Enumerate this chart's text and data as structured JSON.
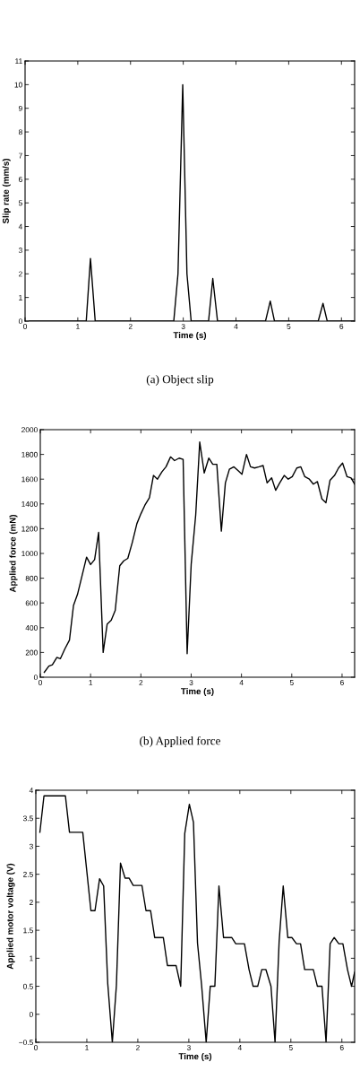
{
  "chart_data": [
    {
      "type": "line",
      "xlabel": "Time (s)",
      "ylabel": "Slip rate (mm/s)",
      "annotations": [
        "(a) Object slip"
      ],
      "xlim": [
        0,
        6.25
      ],
      "ylim": [
        0,
        11
      ],
      "xticks": [
        0,
        1,
        2,
        3,
        4,
        5,
        6
      ],
      "yticks": [
        0,
        1,
        2,
        3,
        4,
        5,
        6,
        7,
        8,
        9,
        10,
        11
      ],
      "grid": false,
      "legend": false,
      "series": [
        {
          "color": "#000000",
          "x": [
            0.08,
            1.16,
            1.24,
            1.33,
            2.82,
            2.9,
            2.99,
            3.07,
            3.15,
            3.48,
            3.56,
            3.65,
            4.56,
            4.65,
            4.73,
            5.56,
            5.65,
            5.73,
            6.25
          ],
          "values": [
            0,
            0,
            2.65,
            0,
            0,
            2.0,
            10,
            2.0,
            0,
            0,
            1.8,
            0,
            0,
            0.85,
            0,
            0,
            0.75,
            0,
            0
          ]
        }
      ]
    },
    {
      "type": "line",
      "xlabel": "Time (s)",
      "ylabel": "Applied force (mN)",
      "annotations": [
        "(b) Applied force"
      ],
      "xlim": [
        0,
        6.25
      ],
      "ylim": [
        0,
        2000
      ],
      "xticks": [
        0,
        1,
        2,
        3,
        4,
        5,
        6
      ],
      "yticks": [
        0,
        200,
        400,
        600,
        800,
        1000,
        1200,
        1400,
        1600,
        1800,
        2000
      ],
      "grid": false,
      "legend": false,
      "series": [
        {
          "color": "#000000",
          "x": [
            0.08,
            0.17,
            0.24,
            0.33,
            0.4,
            0.49,
            0.58,
            0.66,
            0.74,
            0.83,
            0.92,
            1.0,
            1.08,
            1.16,
            1.25,
            1.33,
            1.41,
            1.49,
            1.58,
            1.66,
            1.74,
            1.83,
            1.92,
            2.0,
            2.08,
            2.17,
            2.25,
            2.33,
            2.42,
            2.5,
            2.59,
            2.67,
            2.76,
            2.84,
            2.92,
            3.0,
            3.09,
            3.17,
            3.26,
            3.35,
            3.43,
            3.51,
            3.6,
            3.68,
            3.76,
            3.85,
            3.93,
            4.01,
            4.1,
            4.18,
            4.26,
            4.35,
            4.43,
            4.51,
            4.6,
            4.68,
            4.76,
            4.85,
            4.93,
            5.01,
            5.1,
            5.18,
            5.26,
            5.35,
            5.43,
            5.51,
            5.6,
            5.68,
            5.76,
            5.85,
            5.93,
            6.01,
            6.1,
            6.18,
            6.25
          ],
          "values": [
            40,
            90,
            100,
            160,
            150,
            230,
            300,
            580,
            670,
            820,
            970,
            910,
            950,
            1170,
            200,
            430,
            460,
            540,
            900,
            940,
            960,
            1090,
            1240,
            1320,
            1390,
            1450,
            1630,
            1600,
            1660,
            1700,
            1780,
            1750,
            1770,
            1760,
            190,
            910,
            1310,
            1900,
            1650,
            1770,
            1720,
            1720,
            1180,
            1570,
            1680,
            1700,
            1670,
            1640,
            1800,
            1700,
            1690,
            1700,
            1710,
            1570,
            1610,
            1510,
            1570,
            1630,
            1600,
            1620,
            1690,
            1700,
            1620,
            1600,
            1560,
            1580,
            1440,
            1410,
            1590,
            1630,
            1690,
            1730,
            1620,
            1610,
            1560
          ]
        }
      ]
    },
    {
      "type": "line",
      "xlabel": "Time (s)",
      "ylabel": "Applied motor voltage (V)",
      "xlim": [
        0,
        6.25
      ],
      "ylim": [
        -0.5,
        4
      ],
      "xticks": [
        0,
        1,
        2,
        3,
        4,
        5,
        6
      ],
      "yticks": [
        {
          "value": -0.5,
          "label": "−0.5"
        },
        0,
        0.5,
        1,
        1.5,
        2,
        2.5,
        3,
        3.5,
        4
      ],
      "grid": false,
      "legend": false,
      "series": [
        {
          "color": "#000000",
          "x": [
            0.08,
            0.16,
            0.58,
            0.66,
            0.92,
            1.08,
            1.16,
            1.25,
            1.33,
            1.41,
            1.5,
            1.58,
            1.66,
            1.75,
            1.83,
            1.91,
            2.08,
            2.16,
            2.25,
            2.33,
            2.5,
            2.58,
            2.75,
            2.84,
            2.92,
            3.01,
            3.09,
            3.17,
            3.25,
            3.34,
            3.42,
            3.51,
            3.59,
            3.68,
            3.84,
            3.92,
            4.09,
            4.18,
            4.26,
            4.35,
            4.43,
            4.51,
            4.61,
            4.69,
            4.77,
            4.85,
            4.94,
            5.02,
            5.11,
            5.19,
            5.27,
            5.44,
            5.52,
            5.61,
            5.69,
            5.77,
            5.85,
            5.94,
            6.02,
            6.11,
            6.19,
            6.25
          ],
          "values": [
            3.25,
            3.9,
            3.9,
            3.25,
            3.25,
            1.85,
            1.85,
            2.42,
            2.29,
            0.55,
            -0.5,
            0.52,
            2.7,
            2.43,
            2.43,
            2.3,
            2.3,
            1.85,
            1.85,
            1.37,
            1.37,
            0.87,
            0.87,
            0.5,
            3.23,
            3.75,
            3.43,
            1.27,
            0.52,
            -0.5,
            0.5,
            0.5,
            2.29,
            1.37,
            1.37,
            1.26,
            1.26,
            0.8,
            0.5,
            0.5,
            0.8,
            0.8,
            0.5,
            -0.5,
            1.3,
            2.29,
            1.37,
            1.37,
            1.26,
            1.26,
            0.8,
            0.8,
            0.5,
            0.5,
            -0.5,
            1.26,
            1.37,
            1.26,
            1.26,
            0.8,
            0.5,
            0.75
          ]
        }
      ]
    }
  ]
}
